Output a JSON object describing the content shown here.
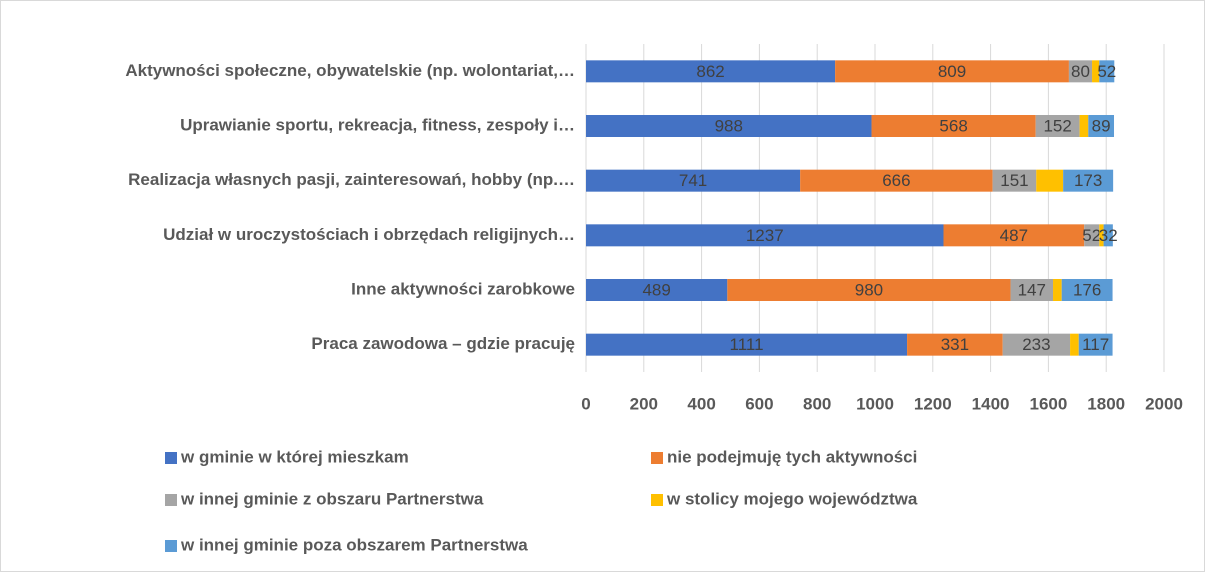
{
  "chart_data": {
    "type": "stacked_bar_horizontal",
    "categories": [
      "Aktywności społeczne, obywatelskie (np. wolontariat,…",
      "Uprawianie sportu, rekreacja, fitness, zespoły i…",
      "Realizacja własnych pasji, zainteresowań, hobby (np.…",
      "Udział w uroczystościach i obrzędach religijnych…",
      "Inne aktywności zarobkowe",
      "Praca zawodowa – gdzie pracuję"
    ],
    "series": [
      {
        "name": "w gminie w której mieszkam",
        "color": "#4472c4",
        "data_labels": true,
        "values": [
          862,
          988,
          741,
          1237,
          489,
          1111
        ]
      },
      {
        "name": "nie podejmuję tych aktywności",
        "color": "#ed7d31",
        "data_labels": true,
        "values": [
          809,
          568,
          666,
          487,
          980,
          331
        ]
      },
      {
        "name": "w innej gminie z obszaru Partnerstwa",
        "color": "#a5a5a5",
        "data_labels": true,
        "values": [
          80,
          152,
          151,
          52,
          147,
          233
        ]
      },
      {
        "name": "w stolicy mojego województwa",
        "color": "#ffc000",
        "data_labels": false,
        "values": [
          25,
          30,
          93,
          15,
          30,
          30
        ]
      },
      {
        "name": "w innej gminie poza obszarem Partnerstwa",
        "color": "#5b9bd5",
        "data_labels": true,
        "values": [
          52,
          89,
          173,
          32,
          176,
          117
        ]
      }
    ],
    "xlim": [
      0,
      2000
    ],
    "xticks": [
      0,
      200,
      400,
      600,
      800,
      1000,
      1200,
      1400,
      1600,
      1800,
      2000
    ],
    "grid": true,
    "legend": "bottom"
  }
}
